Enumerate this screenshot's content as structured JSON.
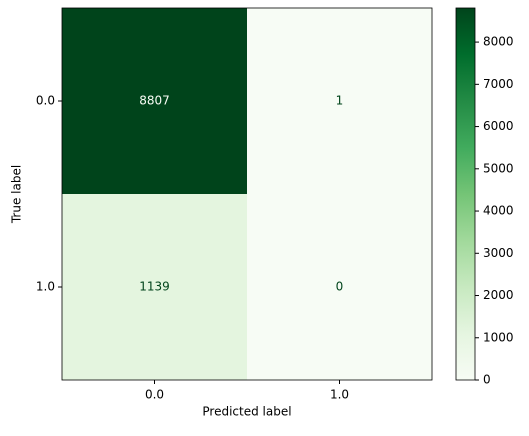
{
  "chart_data": {
    "type": "heatmap",
    "xlabel": "Predicted label",
    "ylabel": "True label",
    "x_categories": [
      "0.0",
      "1.0"
    ],
    "y_categories": [
      "0.0",
      "1.0"
    ],
    "values": [
      [
        8807,
        1
      ],
      [
        1139,
        0
      ]
    ],
    "colormap": [
      "#f7fcf5",
      "#e5f5e0",
      "#c7e9c0",
      "#a1d99b",
      "#74c476",
      "#41ab5d",
      "#238b45",
      "#006d2c",
      "#00441b"
    ],
    "clim": [
      0,
      8807
    ],
    "cticks": [
      0,
      1000,
      2000,
      3000,
      4000,
      5000,
      6000,
      7000,
      8000
    ]
  }
}
